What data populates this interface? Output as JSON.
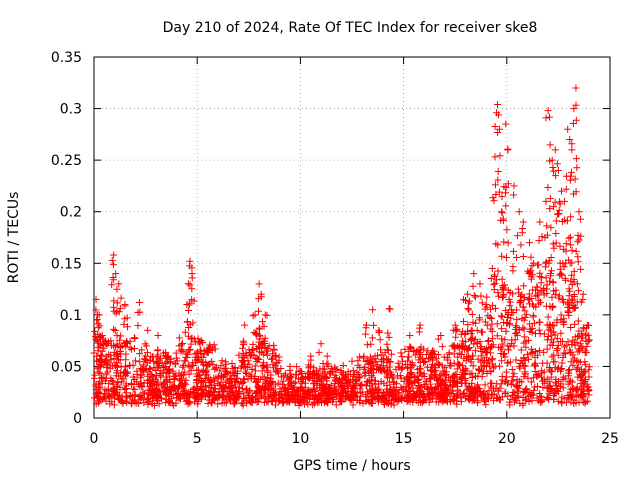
{
  "chart_data": {
    "type": "scatter",
    "title": "Day 210 of 2024, Rate Of TEC Index for receiver ske8",
    "xlabel": "GPS time / hours",
    "ylabel": "ROTI / TECUs",
    "xlim": [
      0,
      25
    ],
    "ylim": [
      0,
      0.35
    ],
    "xticks": [
      0,
      5,
      10,
      15,
      20,
      25
    ],
    "xtick_labels": [
      "0",
      "5",
      "10",
      "15",
      "20",
      "25"
    ],
    "yticks": [
      0,
      0.05,
      0.1,
      0.15,
      0.2,
      0.25,
      0.3,
      0.35
    ],
    "ytick_labels": [
      "0",
      "0.05",
      "0.1",
      "0.15",
      "0.2",
      "0.25",
      "0.3",
      "0.35"
    ],
    "grid": true,
    "marker": "+",
    "color": "#ff0000",
    "series": [
      {
        "name": "ROTI",
        "x": [
          0.1,
          0.25,
          0.4,
          0.95,
          1.05,
          1.2,
          1.5,
          2.2,
          2.6,
          3.1,
          3.6,
          4.5,
          4.65,
          4.75,
          5.2,
          5.5,
          7.3,
          7.8,
          8.0,
          8.1,
          8.3,
          9.5,
          10.0,
          10.5,
          11.0,
          11.3,
          12.5,
          13.2,
          13.5,
          13.8,
          14.3,
          15.3,
          15.8,
          16.4,
          16.8,
          17.5,
          17.9,
          18.1,
          18.4,
          18.7,
          19.0,
          19.3,
          19.45,
          19.55,
          19.65,
          19.75,
          19.95,
          20.05,
          20.35,
          20.6,
          20.8,
          21.1,
          21.3,
          21.6,
          21.9,
          22.0,
          22.2,
          22.35,
          22.5,
          22.65,
          22.8,
          22.95,
          23.05,
          23.15,
          23.25,
          23.35,
          23.5,
          23.7,
          23.9
        ],
        "y": [
          0.115,
          0.1,
          0.08,
          0.158,
          0.14,
          0.13,
          0.11,
          0.112,
          0.085,
          0.08,
          0.06,
          0.11,
          0.152,
          0.14,
          0.075,
          0.065,
          0.09,
          0.1,
          0.13,
          0.12,
          0.1,
          0.05,
          0.045,
          0.06,
          0.072,
          0.06,
          0.055,
          0.09,
          0.105,
          0.085,
          0.106,
          0.08,
          0.09,
          0.065,
          0.08,
          0.09,
          0.115,
          0.12,
          0.14,
          0.13,
          0.11,
          0.145,
          0.226,
          0.304,
          0.28,
          0.2,
          0.285,
          0.26,
          0.225,
          0.2,
          0.19,
          0.17,
          0.15,
          0.19,
          0.21,
          0.298,
          0.25,
          0.26,
          0.24,
          0.22,
          0.21,
          0.28,
          0.27,
          0.26,
          0.3,
          0.32,
          0.2,
          0.12,
          0.09
        ]
      }
    ]
  }
}
